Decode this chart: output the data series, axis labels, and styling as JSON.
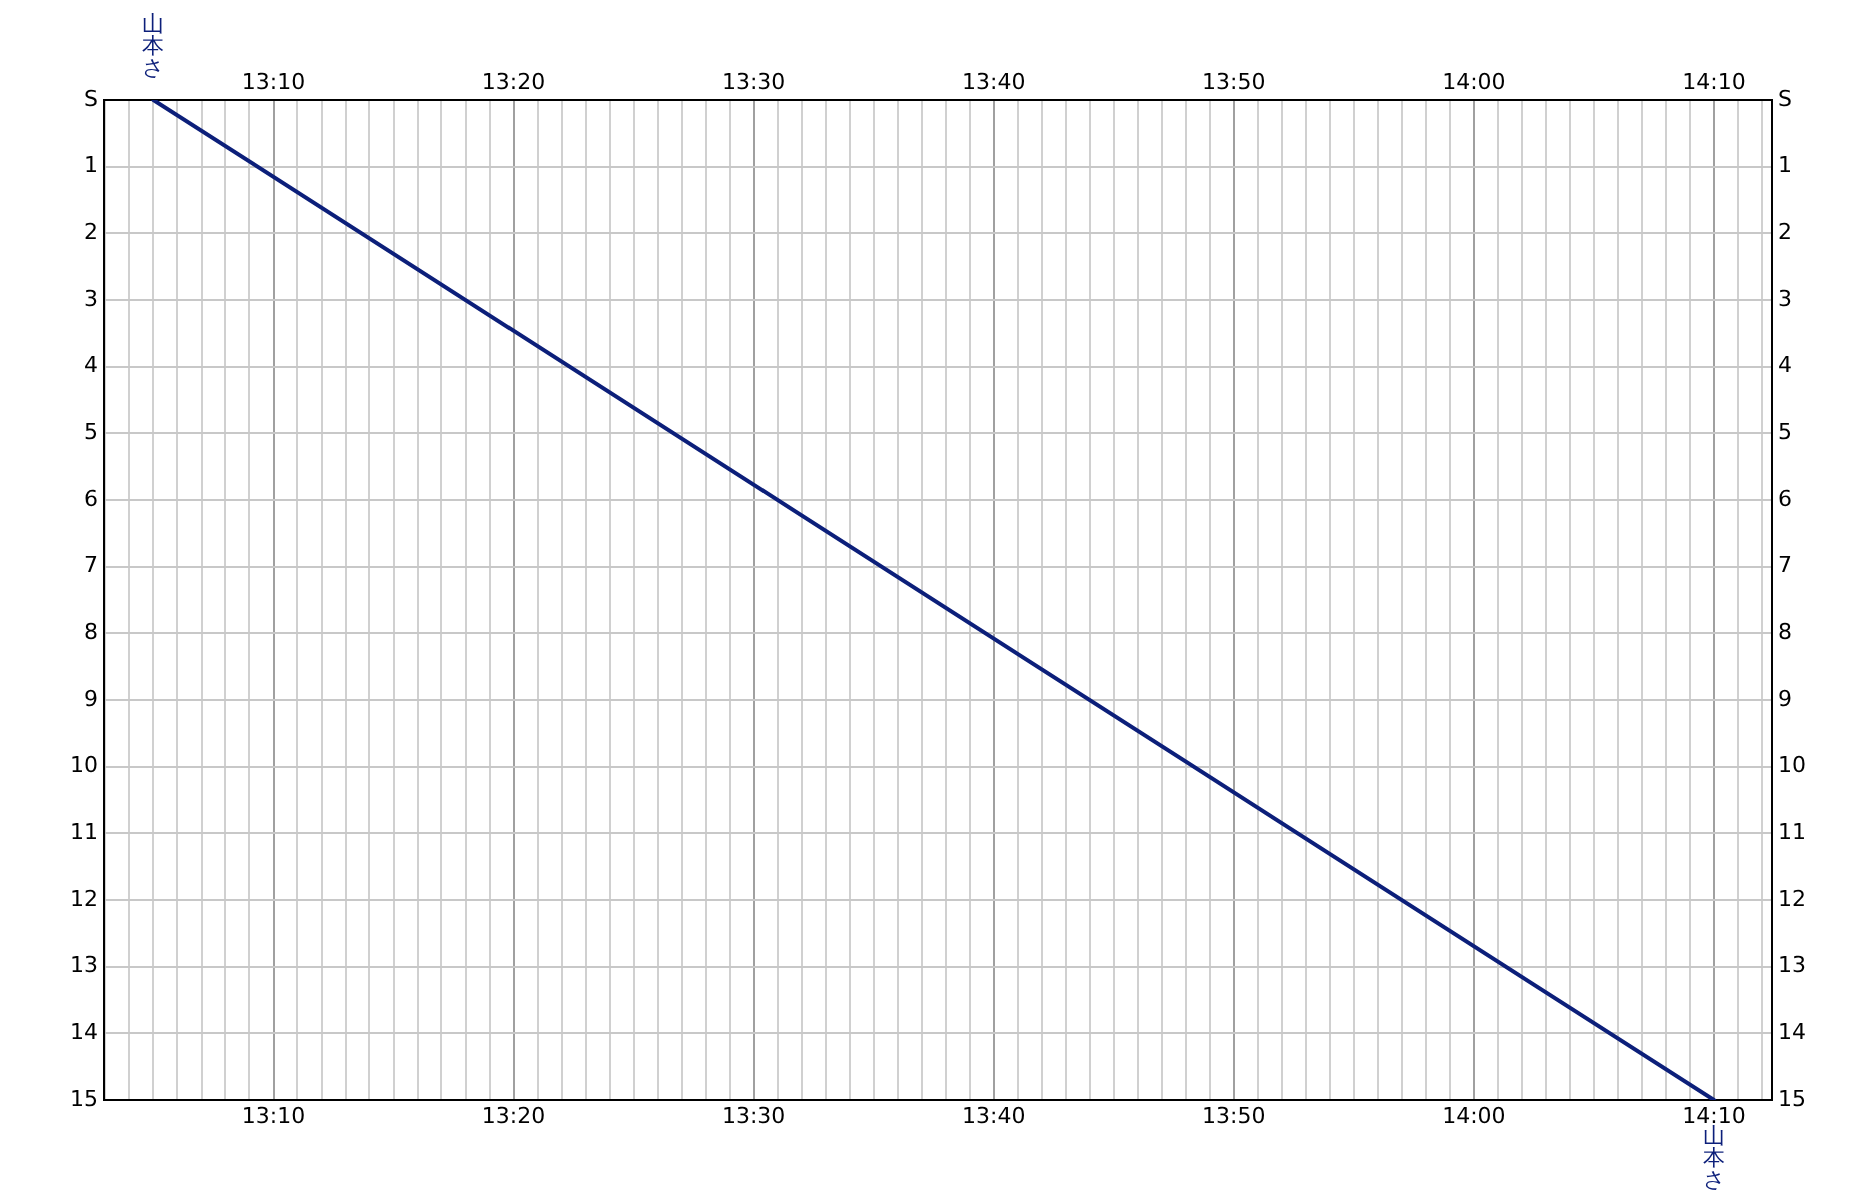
{
  "chart_data": {
    "type": "line",
    "series": [
      {
        "name": "山本さ",
        "color": "#0c1f7a",
        "x": [
          13.0833,
          14.1667
        ],
        "values": [
          0,
          15
        ]
      }
    ],
    "xlim": [
      13.049,
      14.207
    ],
    "xticks": [
      {
        "value": 13.05,
        "label": null
      },
      {
        "value": 13.0667,
        "label": null
      },
      {
        "value": 13.0833,
        "label": null
      },
      {
        "value": 13.1,
        "label": null
      },
      {
        "value": 13.1167,
        "label": null
      },
      {
        "value": 13.1333,
        "label": null
      },
      {
        "value": 13.15,
        "label": null
      },
      {
        "value": 13.1667,
        "label": "13:10"
      },
      {
        "value": 13.1833,
        "label": null
      },
      {
        "value": 13.2,
        "label": null
      },
      {
        "value": 13.2167,
        "label": null
      },
      {
        "value": 13.2333,
        "label": null
      },
      {
        "value": 13.25,
        "label": null
      },
      {
        "value": 13.2667,
        "label": null
      },
      {
        "value": 13.2833,
        "label": null
      },
      {
        "value": 13.3,
        "label": null
      },
      {
        "value": 13.3167,
        "label": null
      },
      {
        "value": 13.3333,
        "label": "13:20"
      },
      {
        "value": 13.35,
        "label": null
      },
      {
        "value": 13.3667,
        "label": null
      },
      {
        "value": 13.3833,
        "label": null
      },
      {
        "value": 13.4,
        "label": null
      },
      {
        "value": 13.4167,
        "label": null
      },
      {
        "value": 13.4333,
        "label": null
      },
      {
        "value": 13.45,
        "label": null
      },
      {
        "value": 13.4667,
        "label": null
      },
      {
        "value": 13.4833,
        "label": null
      },
      {
        "value": 13.5,
        "label": "13:30"
      },
      {
        "value": 13.5167,
        "label": null
      },
      {
        "value": 13.5333,
        "label": null
      },
      {
        "value": 13.55,
        "label": null
      },
      {
        "value": 13.5667,
        "label": null
      },
      {
        "value": 13.5833,
        "label": null
      },
      {
        "value": 13.6,
        "label": null
      },
      {
        "value": 13.6167,
        "label": null
      },
      {
        "value": 13.6333,
        "label": null
      },
      {
        "value": 13.65,
        "label": null
      },
      {
        "value": 13.6667,
        "label": "13:40"
      },
      {
        "value": 13.6833,
        "label": null
      },
      {
        "value": 13.7,
        "label": null
      },
      {
        "value": 13.7167,
        "label": null
      },
      {
        "value": 13.7333,
        "label": null
      },
      {
        "value": 13.75,
        "label": null
      },
      {
        "value": 13.7667,
        "label": null
      },
      {
        "value": 13.7833,
        "label": null
      },
      {
        "value": 13.8,
        "label": null
      },
      {
        "value": 13.8167,
        "label": null
      },
      {
        "value": 13.8333,
        "label": "13:50"
      },
      {
        "value": 13.85,
        "label": null
      },
      {
        "value": 13.8667,
        "label": null
      },
      {
        "value": 13.8833,
        "label": null
      },
      {
        "value": 13.9,
        "label": null
      },
      {
        "value": 13.9167,
        "label": null
      },
      {
        "value": 13.9333,
        "label": null
      },
      {
        "value": 13.95,
        "label": null
      },
      {
        "value": 13.9667,
        "label": null
      },
      {
        "value": 13.9833,
        "label": null
      },
      {
        "value": 14,
        "label": "14:00"
      },
      {
        "value": 14.0167,
        "label": null
      },
      {
        "value": 14.0333,
        "label": null
      },
      {
        "value": 14.05,
        "label": null
      },
      {
        "value": 14.0667,
        "label": null
      },
      {
        "value": 14.0833,
        "label": null
      },
      {
        "value": 14.1,
        "label": null
      },
      {
        "value": 14.1167,
        "label": null
      },
      {
        "value": 14.1333,
        "label": null
      },
      {
        "value": 14.15,
        "label": null
      },
      {
        "value": 14.1667,
        "label": "14:10"
      },
      {
        "value": 14.1833,
        "label": null
      },
      {
        "value": 14.2,
        "label": null
      }
    ],
    "x2lim": [
      13.049,
      14.207
    ],
    "x2ticks": [
      {
        "value": 13.1667,
        "label": "13:10"
      },
      {
        "value": 13.3333,
        "label": "13:20"
      },
      {
        "value": 13.5,
        "label": "13:30"
      },
      {
        "value": 13.6667,
        "label": "13:40"
      },
      {
        "value": 13.8333,
        "label": "13:50"
      },
      {
        "value": 14,
        "label": "14:00"
      },
      {
        "value": 14.1667,
        "label": "14:10"
      }
    ],
    "ylim": [
      15,
      0
    ],
    "yticks": [
      {
        "value": 0,
        "label": "S"
      },
      1,
      2,
      3,
      4,
      5,
      6,
      7,
      8,
      9,
      10,
      11,
      12,
      13,
      14,
      15
    ],
    "y2lim": [
      15,
      0
    ],
    "y2ticks": [
      {
        "value": 0,
        "label": "S"
      },
      1,
      2,
      3,
      4,
      5,
      6,
      7,
      8,
      9,
      10,
      11,
      12,
      13,
      14,
      15
    ],
    "grid": true,
    "marker": "none",
    "line_style": "solid"
  }
}
